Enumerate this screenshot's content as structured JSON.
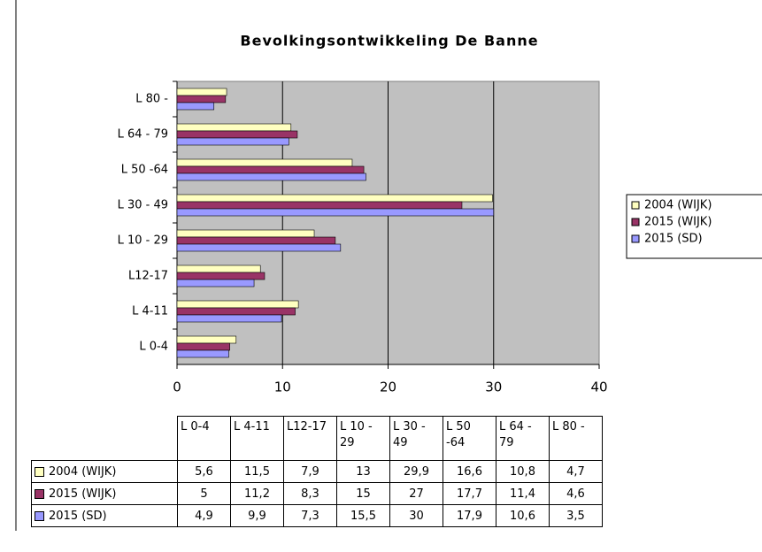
{
  "chart_data": {
    "type": "barh",
    "title": "Bevolkingsontwikkeling De Banne",
    "categories": [
      "L 0-4",
      "L 4-11",
      "L12-17",
      "L 10 - 29",
      "L 30 - 49",
      "L 50 -64",
      "L 64 - 79",
      "L 80 -"
    ],
    "series": [
      {
        "name": "2004 (WIJK)",
        "color": "#ffffc0",
        "values": [
          5.6,
          11.5,
          7.9,
          13,
          29.9,
          16.6,
          10.8,
          4.7
        ],
        "value_labels": [
          "5,6",
          "11,5",
          "7,9",
          "13",
          "29,9",
          "16,6",
          "10,8",
          "4,7"
        ]
      },
      {
        "name": "2015 (WIJK)",
        "color": "#993366",
        "values": [
          5,
          11.2,
          8.3,
          15,
          27,
          17.7,
          11.4,
          4.6
        ],
        "value_labels": [
          "5",
          "11,2",
          "8,3",
          "15",
          "27",
          "17,7",
          "11,4",
          "4,6"
        ]
      },
      {
        "name": "2015 (SD)",
        "color": "#9999ff",
        "values": [
          4.9,
          9.9,
          7.3,
          15.5,
          30,
          17.9,
          10.6,
          3.5
        ],
        "value_labels": [
          "4,9",
          "9,9",
          "7,3",
          "15,5",
          "30",
          "17,9",
          "10,6",
          "3,5"
        ]
      }
    ],
    "xlim": [
      0,
      40
    ],
    "xticks": [
      0,
      10,
      20,
      30,
      40
    ],
    "grid": true,
    "legend": "right",
    "plot_background": "#c0c0c0"
  }
}
